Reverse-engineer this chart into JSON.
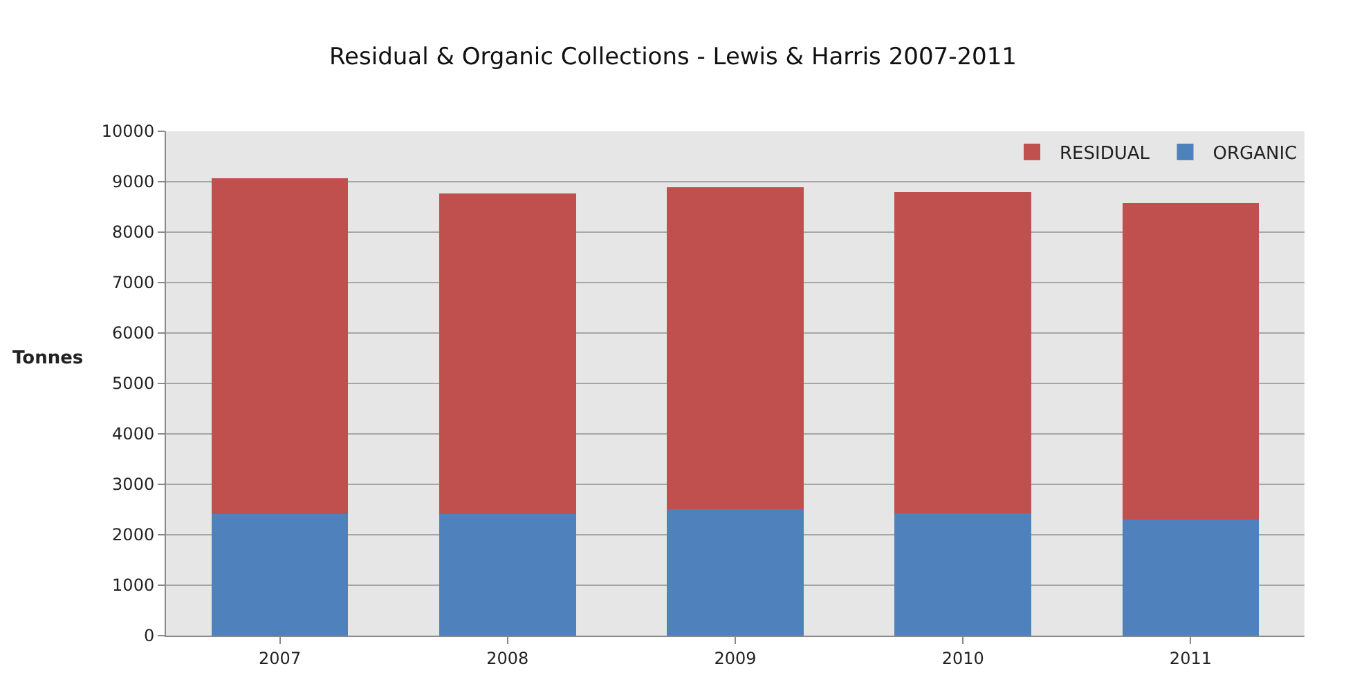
{
  "chart_data": {
    "type": "bar",
    "title": "Residual & Organic Collections - Lewis & Harris 2007-2011",
    "ylabel": "Tonnes",
    "categories": [
      "2007",
      "2008",
      "2009",
      "2010",
      "2011"
    ],
    "stacked": true,
    "series": [
      {
        "name": "ORGANIC",
        "color": "#4f81bd",
        "values": [
          2410,
          2410,
          2510,
          2430,
          2300
        ]
      },
      {
        "name": "RESIDUAL",
        "color": "#c0504d",
        "values": [
          6660,
          6360,
          6380,
          6360,
          6280
        ]
      }
    ],
    "ylim": [
      0,
      10000
    ],
    "yticks": [
      0,
      1000,
      2000,
      3000,
      4000,
      5000,
      6000,
      7000,
      8000,
      9000,
      10000
    ],
    "grid": "y",
    "legend": "top right"
  }
}
